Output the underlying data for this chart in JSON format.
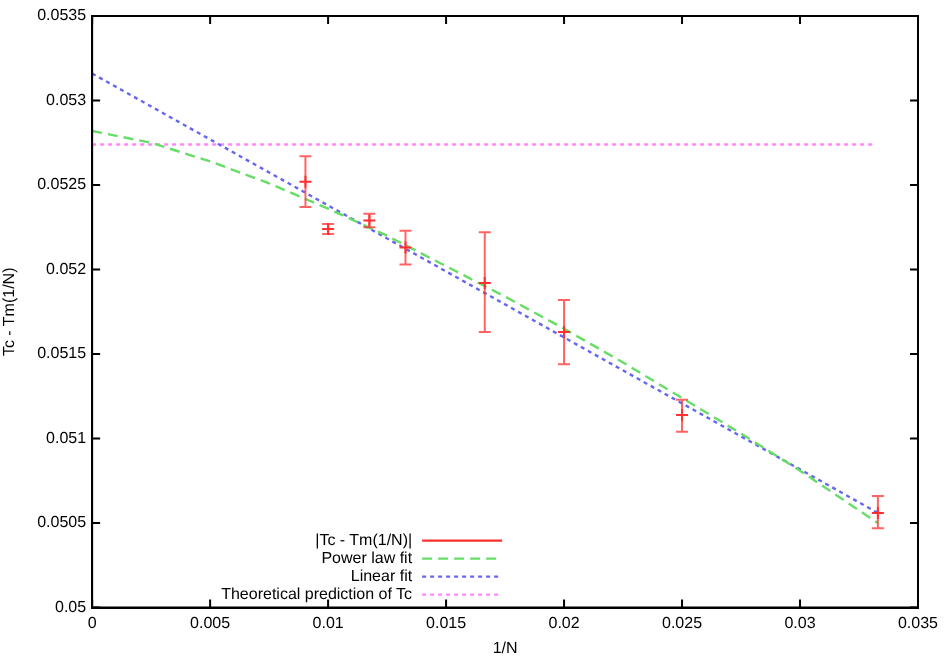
{
  "chart_data": {
    "type": "scatter",
    "xlabel": "1/N",
    "ylabel": "Tc - Tm(1/N)",
    "xlim": [
      0,
      0.035
    ],
    "xticks": [
      0,
      0.005,
      0.01,
      0.015,
      0.02,
      0.025,
      0.03,
      0.035
    ],
    "ylim": [
      0.05,
      0.0535
    ],
    "yticks": [
      0.05,
      0.0505,
      0.051,
      0.0515,
      0.052,
      0.0525,
      0.053,
      0.0535
    ],
    "grid": false,
    "legend": "bottom",
    "series": [
      {
        "name": "|Tc - Tm(1/N)|",
        "type": "scatter",
        "marker": "cross",
        "color": "#ff3030",
        "x": [
          0.00904,
          0.01,
          0.01175,
          0.01328,
          0.01664,
          0.02,
          0.025,
          0.0333
        ],
        "values": [
          0.05252,
          0.05224,
          0.05229,
          0.05213,
          0.05192,
          0.05163,
          0.05114,
          0.05056
        ],
        "errors": [
          [
            0.05237,
            0.05267
          ],
          [
            0.05221,
            0.05227
          ],
          [
            0.05225,
            0.05233
          ],
          [
            0.05203,
            0.05223
          ],
          [
            0.05163,
            0.05222
          ],
          [
            0.05144,
            0.05182
          ],
          [
            0.05104,
            0.05123
          ],
          [
            0.05047,
            0.05066
          ]
        ]
      },
      {
        "name": "Power law fit",
        "type": "line",
        "line_style": "dashed",
        "color": "#66dd66",
        "x": [
          0,
          0.0025,
          0.005,
          0.0075,
          0.01,
          0.0125,
          0.015,
          0.0175,
          0.02,
          0.0225,
          0.025,
          0.0275,
          0.03,
          0.0333
        ],
        "values": [
          0.05282,
          0.05275,
          0.05264,
          0.05251,
          0.05236,
          0.0522,
          0.05202,
          0.05184,
          0.05165,
          0.05145,
          0.05124,
          0.05103,
          0.05081,
          0.0505
        ]
      },
      {
        "name": "Linear fit",
        "type": "line",
        "line_style": "dotted",
        "color": "#6666ee",
        "x": [
          0,
          0.0333
        ],
        "values": [
          0.05316,
          0.05056
        ]
      },
      {
        "name": "Theoretical prediction of Tc",
        "type": "line",
        "line_style": "dotted",
        "color": "#ff88ff",
        "x": [
          0,
          0.0332
        ],
        "values": [
          0.05274,
          0.05274
        ]
      }
    ]
  }
}
